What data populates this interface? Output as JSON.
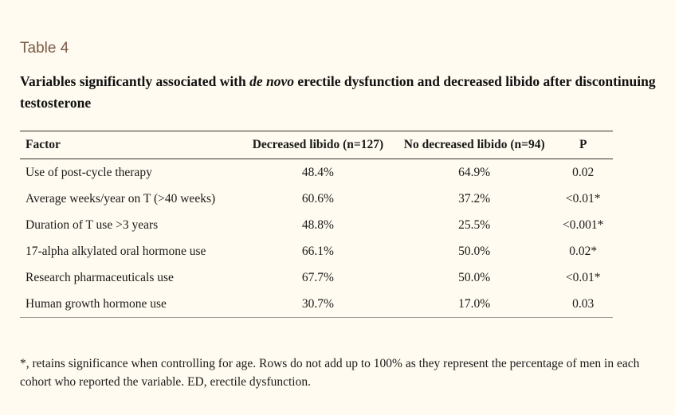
{
  "table_label": "Table 4",
  "caption": {
    "before": "Variables significantly associated with ",
    "italic": "de novo",
    "after": " erectile dysfunction and decreased libido after discontinuing testosterone"
  },
  "table": {
    "headers": {
      "factor": "Factor",
      "decreased": "Decreased libido (n=127)",
      "no_decreased": "No decreased libido (n=94)",
      "p": "P"
    },
    "rows": [
      {
        "factor": "Use of post-cycle therapy",
        "decreased": "48.4%",
        "no_decreased": "64.9%",
        "p": "0.02"
      },
      {
        "factor": "Average weeks/year on T (>40 weeks)",
        "decreased": "60.6%",
        "no_decreased": "37.2%",
        "p": "<0.01*"
      },
      {
        "factor": "Duration of T use >3 years",
        "decreased": "48.8%",
        "no_decreased": "25.5%",
        "p": "<0.001*"
      },
      {
        "factor": "17-alpha alkylated oral hormone use",
        "decreased": "66.1%",
        "no_decreased": "50.0%",
        "p": "0.02*"
      },
      {
        "factor": "Research pharmaceuticals use",
        "decreased": "67.7%",
        "no_decreased": "50.0%",
        "p": "<0.01*"
      },
      {
        "factor": "Human growth hormone use",
        "decreased": "30.7%",
        "no_decreased": "17.0%",
        "p": "0.03"
      }
    ]
  },
  "footnote": "*, retains significance when controlling for age. Rows do not add up to 100% as they represent the percentage of men in each cohort who reported the variable. ED, erectile dysfunction."
}
